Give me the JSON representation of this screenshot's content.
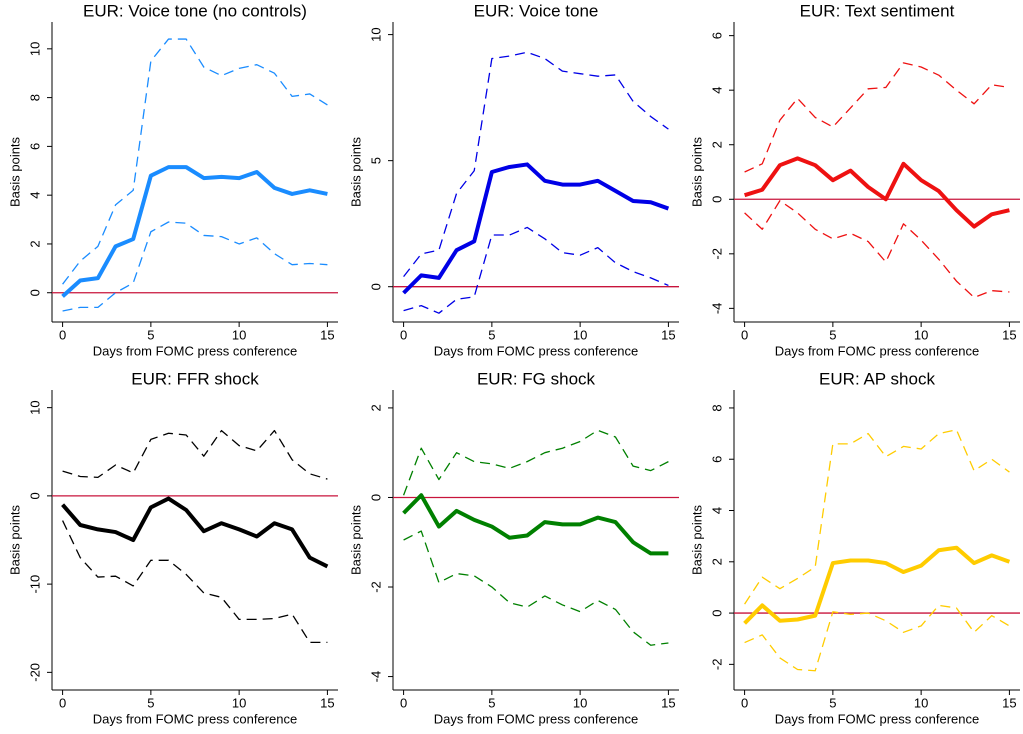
{
  "chart_data": [
    {
      "type": "line",
      "title": "EUR: Voice tone (no controls)",
      "xlabel": "Days from FOMC press conference",
      "ylabel": "Basis points",
      "x": [
        0,
        1,
        2,
        3,
        4,
        5,
        6,
        7,
        8,
        9,
        10,
        11,
        12,
        13,
        14,
        15
      ],
      "xlim": [
        -0.6,
        15.6
      ],
      "xticks": [
        0,
        5,
        10,
        15
      ],
      "ylim": [
        -1.2,
        11.1
      ],
      "yticks": [
        0,
        2,
        4,
        6,
        8,
        10
      ],
      "hline": 0,
      "hline_color": "#c8143c",
      "series": [
        {
          "color": "#1a8cff",
          "style": "solid",
          "values": [
            -0.15,
            0.5,
            0.6,
            1.9,
            2.2,
            4.8,
            5.15,
            5.15,
            4.7,
            4.75,
            4.7,
            4.95,
            4.3,
            4.05,
            4.2,
            4.05
          ]
        },
        {
          "color": "#1a8cff",
          "style": "dashed",
          "values": [
            0.35,
            1.3,
            1.9,
            3.6,
            4.2,
            9.5,
            10.4,
            10.4,
            9.25,
            8.9,
            9.2,
            9.35,
            9.0,
            8.05,
            8.15,
            7.7
          ]
        },
        {
          "color": "#1a8cff",
          "style": "dashed",
          "values": [
            -0.75,
            -0.6,
            -0.6,
            0.0,
            0.4,
            2.5,
            2.9,
            2.85,
            2.35,
            2.3,
            2.0,
            2.25,
            1.6,
            1.15,
            1.2,
            1.15
          ]
        }
      ]
    },
    {
      "type": "line",
      "title": "EUR: Voice tone",
      "xlabel": "Days from FOMC press conference",
      "ylabel": "Basis points",
      "x": [
        0,
        1,
        2,
        3,
        4,
        5,
        6,
        7,
        8,
        9,
        10,
        11,
        12,
        13,
        14,
        15
      ],
      "xlim": [
        -0.6,
        15.6
      ],
      "xticks": [
        0,
        5,
        10,
        15
      ],
      "ylim": [
        -1.4,
        10.5
      ],
      "yticks": [
        0,
        5,
        10
      ],
      "hline": 0,
      "hline_color": "#c8143c",
      "series": [
        {
          "color": "#0000e6",
          "style": "solid",
          "values": [
            -0.25,
            0.45,
            0.35,
            1.45,
            1.8,
            4.55,
            4.75,
            4.85,
            4.2,
            4.05,
            4.05,
            4.2,
            3.8,
            3.4,
            3.35,
            3.1
          ]
        },
        {
          "color": "#0000e6",
          "style": "dashed",
          "values": [
            0.4,
            1.3,
            1.45,
            3.7,
            4.6,
            9.05,
            9.15,
            9.3,
            9.05,
            8.55,
            8.45,
            8.35,
            8.4,
            7.35,
            6.75,
            6.25
          ]
        },
        {
          "color": "#0000e6",
          "style": "dashed",
          "values": [
            -0.95,
            -0.75,
            -1.05,
            -0.5,
            -0.4,
            2.05,
            2.05,
            2.35,
            1.9,
            1.35,
            1.25,
            1.55,
            0.95,
            0.6,
            0.35,
            0.05
          ]
        }
      ]
    },
    {
      "type": "line",
      "title": "EUR: Text sentiment",
      "xlabel": "Days from FOMC press conference",
      "ylabel": "Basis points",
      "x": [
        0,
        1,
        2,
        3,
        4,
        5,
        6,
        7,
        8,
        9,
        10,
        11,
        12,
        13,
        14,
        15
      ],
      "xlim": [
        -0.6,
        15.6
      ],
      "xticks": [
        0,
        5,
        10,
        15
      ],
      "ylim": [
        -4.5,
        6.5
      ],
      "yticks": [
        -4,
        -2,
        0,
        2,
        4,
        6
      ],
      "hline": 0,
      "hline_color": "#c8143c",
      "series": [
        {
          "color": "#ee1111",
          "style": "solid",
          "values": [
            0.15,
            0.35,
            1.25,
            1.5,
            1.25,
            0.7,
            1.05,
            0.45,
            0.0,
            1.3,
            0.7,
            0.3,
            -0.4,
            -1.0,
            -0.55,
            -0.4
          ]
        },
        {
          "color": "#ee1111",
          "style": "dashed",
          "values": [
            1.0,
            1.3,
            2.9,
            3.7,
            3.0,
            2.65,
            3.35,
            4.05,
            4.1,
            5.0,
            4.85,
            4.55,
            4.0,
            3.5,
            4.2,
            4.1
          ]
        },
        {
          "color": "#ee1111",
          "style": "dashed",
          "values": [
            -0.5,
            -1.1,
            -0.05,
            -0.5,
            -1.1,
            -1.45,
            -1.25,
            -1.55,
            -2.3,
            -0.9,
            -1.5,
            -2.2,
            -3.0,
            -3.6,
            -3.35,
            -3.4
          ]
        }
      ]
    },
    {
      "type": "line",
      "title": "EUR: FFR shock",
      "xlabel": "Days from FOMC press conference",
      "ylabel": "Basis points",
      "x": [
        0,
        1,
        2,
        3,
        4,
        5,
        6,
        7,
        8,
        9,
        10,
        11,
        12,
        13,
        14,
        15
      ],
      "xlim": [
        -0.6,
        15.6
      ],
      "xticks": [
        0,
        5,
        10,
        15
      ],
      "ylim": [
        -22,
        12
      ],
      "yticks": [
        -20,
        -10,
        0,
        10
      ],
      "hline": 0,
      "hline_color": "#c8143c",
      "series": [
        {
          "color": "#000000",
          "style": "solid",
          "values": [
            -1,
            -3.3,
            -3.8,
            -4.1,
            -5,
            -1.3,
            -0.3,
            -1.6,
            -4,
            -3.1,
            -3.8,
            -4.6,
            -3.1,
            -3.8,
            -7,
            -8
          ]
        },
        {
          "color": "#000000",
          "style": "dashed",
          "values": [
            2.8,
            2.2,
            2.1,
            3.5,
            2.6,
            6.4,
            7.1,
            6.9,
            4.5,
            7.4,
            5.7,
            5.1,
            7.4,
            4.1,
            2.5,
            1.9
          ]
        },
        {
          "color": "#000000",
          "style": "dashed",
          "values": [
            -2.8,
            -7,
            -9.2,
            -9.1,
            -10.2,
            -7.3,
            -7.3,
            -8.9,
            -11,
            -11.5,
            -14,
            -14,
            -13.9,
            -13.4,
            -16.6,
            -16.6
          ]
        }
      ]
    },
    {
      "type": "line",
      "title": "EUR: FG shock",
      "xlabel": "Days from FOMC press conference",
      "ylabel": "Basis points",
      "x": [
        0,
        1,
        2,
        3,
        4,
        5,
        6,
        7,
        8,
        9,
        10,
        11,
        12,
        13,
        14,
        15
      ],
      "xlim": [
        -0.6,
        15.6
      ],
      "xticks": [
        0,
        5,
        10,
        15
      ],
      "ylim": [
        -4.3,
        2.4
      ],
      "yticks": [
        -4,
        -2,
        0,
        2
      ],
      "hline": 0,
      "hline_color": "#c8143c",
      "series": [
        {
          "color": "#008000",
          "style": "solid",
          "values": [
            -0.35,
            0.05,
            -0.65,
            -0.3,
            -0.5,
            -0.65,
            -0.9,
            -0.85,
            -0.55,
            -0.6,
            -0.6,
            -0.45,
            -0.55,
            -1.0,
            -1.25,
            -1.25
          ]
        },
        {
          "color": "#008000",
          "style": "dashed",
          "values": [
            0.05,
            1.1,
            0.4,
            1.0,
            0.8,
            0.75,
            0.65,
            0.8,
            1.0,
            1.1,
            1.25,
            1.5,
            1.35,
            0.7,
            0.6,
            0.8
          ]
        },
        {
          "color": "#008000",
          "style": "dashed",
          "values": [
            -0.95,
            -0.75,
            -1.9,
            -1.7,
            -1.75,
            -2.0,
            -2.35,
            -2.45,
            -2.2,
            -2.4,
            -2.55,
            -2.3,
            -2.5,
            -3.0,
            -3.3,
            -3.25
          ]
        }
      ]
    },
    {
      "type": "line",
      "title": "EUR: AP shock",
      "xlabel": "Days from FOMC press conference",
      "ylabel": "Basis points",
      "x": [
        0,
        1,
        2,
        3,
        4,
        5,
        6,
        7,
        8,
        9,
        10,
        11,
        12,
        13,
        14,
        15
      ],
      "xlim": [
        -0.6,
        15.6
      ],
      "xticks": [
        0,
        5,
        10,
        15
      ],
      "ylim": [
        -3,
        8.7
      ],
      "yticks": [
        -2,
        0,
        2,
        4,
        6,
        8
      ],
      "hline": 0,
      "hline_color": "#c8143c",
      "series": [
        {
          "color": "#ffcc00",
          "style": "solid",
          "values": [
            -0.4,
            0.3,
            -0.3,
            -0.25,
            -0.1,
            1.95,
            2.05,
            2.05,
            1.95,
            1.6,
            1.85,
            2.45,
            2.55,
            1.95,
            2.25,
            2.0
          ]
        },
        {
          "color": "#ffcc00",
          "style": "dashed",
          "values": [
            0.35,
            1.4,
            0.95,
            1.35,
            1.8,
            6.6,
            6.6,
            7.0,
            6.1,
            6.5,
            6.4,
            7.0,
            7.15,
            5.55,
            6.0,
            5.5
          ]
        },
        {
          "color": "#ffcc00",
          "style": "dashed",
          "values": [
            -1.15,
            -0.85,
            -1.75,
            -2.2,
            -2.25,
            0.05,
            -0.05,
            0.0,
            -0.3,
            -0.75,
            -0.5,
            0.3,
            0.2,
            -0.75,
            -0.1,
            -0.5
          ]
        }
      ]
    }
  ]
}
